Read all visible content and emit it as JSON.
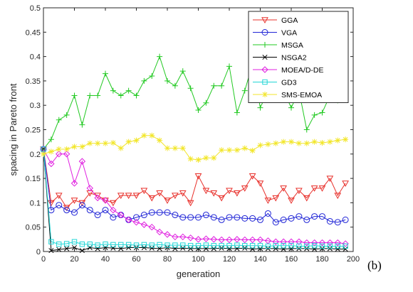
{
  "panel_label": "(b)",
  "chart_data": {
    "type": "line",
    "xlabel": "generation",
    "ylabel": "spacing in Pareto front",
    "xlim": [
      0,
      200
    ],
    "ylim": [
      0,
      0.5
    ],
    "xticks": [
      "0",
      "20",
      "40",
      "60",
      "80",
      "100",
      "120",
      "140",
      "160",
      "180",
      "200"
    ],
    "yticks": [
      "0",
      "0.05",
      "0.1",
      "0.15",
      "0.2",
      "0.25",
      "0.3",
      "0.35",
      "0.4",
      "0.45",
      "0.5"
    ],
    "legend_position": "top-right",
    "grid": false,
    "series": [
      {
        "name": "GGA",
        "color": "#e8302b",
        "marker": "triangle-down",
        "x": [
          0,
          5,
          10,
          15,
          20,
          25,
          30,
          35,
          40,
          45,
          50,
          55,
          60,
          65,
          70,
          75,
          80,
          85,
          90,
          95,
          100,
          105,
          110,
          115,
          120,
          125,
          130,
          135,
          140,
          145,
          150,
          155,
          160,
          165,
          170,
          175,
          180,
          185,
          190,
          195
        ],
        "y": [
          0.21,
          0.1,
          0.115,
          0.09,
          0.105,
          0.1,
          0.12,
          0.115,
          0.105,
          0.1,
          0.115,
          0.115,
          0.115,
          0.125,
          0.11,
          0.12,
          0.105,
          0.115,
          0.12,
          0.1,
          0.155,
          0.125,
          0.12,
          0.11,
          0.125,
          0.12,
          0.13,
          0.155,
          0.14,
          0.105,
          0.11,
          0.13,
          0.105,
          0.125,
          0.11,
          0.13,
          0.13,
          0.15,
          0.115,
          0.14
        ]
      },
      {
        "name": "VGA",
        "color": "#1f24d6",
        "marker": "circle",
        "x": [
          0,
          5,
          10,
          15,
          20,
          25,
          30,
          35,
          40,
          45,
          50,
          55,
          60,
          65,
          70,
          75,
          80,
          85,
          90,
          95,
          100,
          105,
          110,
          115,
          120,
          125,
          130,
          135,
          140,
          145,
          150,
          155,
          160,
          165,
          170,
          175,
          180,
          185,
          190,
          195
        ],
        "y": [
          0.21,
          0.085,
          0.095,
          0.085,
          0.08,
          0.095,
          0.085,
          0.075,
          0.085,
          0.07,
          0.075,
          0.065,
          0.07,
          0.075,
          0.08,
          0.08,
          0.08,
          0.075,
          0.07,
          0.07,
          0.07,
          0.075,
          0.07,
          0.065,
          0.07,
          0.07,
          0.068,
          0.068,
          0.065,
          0.078,
          0.06,
          0.065,
          0.068,
          0.072,
          0.065,
          0.072,
          0.072,
          0.062,
          0.06,
          0.065
        ]
      },
      {
        "name": "MSGA",
        "color": "#22c922",
        "marker": "plus",
        "x": [
          0,
          5,
          10,
          15,
          20,
          25,
          30,
          35,
          40,
          45,
          50,
          55,
          60,
          65,
          70,
          75,
          80,
          85,
          90,
          95,
          100,
          105,
          110,
          115,
          120,
          125,
          130,
          135,
          140,
          145,
          150,
          155,
          160,
          165,
          170,
          175,
          180,
          185,
          190,
          195
        ],
        "y": [
          0.21,
          0.23,
          0.27,
          0.28,
          0.32,
          0.26,
          0.32,
          0.32,
          0.365,
          0.33,
          0.32,
          0.33,
          0.32,
          0.35,
          0.36,
          0.4,
          0.35,
          0.34,
          0.37,
          0.335,
          0.29,
          0.305,
          0.34,
          0.34,
          0.38,
          0.285,
          0.33,
          0.385,
          0.295,
          0.33,
          0.37,
          0.33,
          0.295,
          0.33,
          0.25,
          0.28,
          0.285,
          0.32,
          0.31,
          0.38
        ]
      },
      {
        "name": "NSGA2",
        "color": "#000000",
        "marker": "x",
        "x": [
          0,
          5,
          10,
          15,
          20,
          25,
          30,
          35,
          40,
          45,
          50,
          55,
          60,
          65,
          70,
          75,
          80,
          85,
          90,
          95,
          100,
          105,
          110,
          115,
          120,
          125,
          130,
          135,
          140,
          145,
          150,
          155,
          160,
          165,
          170,
          175,
          180,
          185,
          190,
          195
        ],
        "y": [
          0.21,
          0.002,
          0.004,
          0.006,
          0.008,
          0.002,
          0.008,
          0.006,
          0.008,
          0.007,
          0.006,
          0.008,
          0.008,
          0.008,
          0.007,
          0.006,
          0.008,
          0.006,
          0.007,
          0.006,
          0.006,
          0.006,
          0.006,
          0.007,
          0.006,
          0.006,
          0.007,
          0.005,
          0.006,
          0.006,
          0.006,
          0.005,
          0.006,
          0.006,
          0.006,
          0.005,
          0.006,
          0.006,
          0.005,
          0.005
        ]
      },
      {
        "name": "MOEA/D-DE",
        "color": "#e020e0",
        "marker": "diamond",
        "x": [
          0,
          5,
          10,
          15,
          20,
          25,
          30,
          35,
          40,
          45,
          50,
          55,
          60,
          65,
          70,
          75,
          80,
          85,
          90,
          95,
          100,
          105,
          110,
          115,
          120,
          125,
          130,
          135,
          140,
          145,
          150,
          155,
          160,
          165,
          170,
          175,
          180,
          185,
          190,
          195
        ],
        "y": [
          0.21,
          0.18,
          0.2,
          0.2,
          0.14,
          0.185,
          0.13,
          0.11,
          0.105,
          0.085,
          0.075,
          0.065,
          0.06,
          0.055,
          0.05,
          0.04,
          0.035,
          0.03,
          0.03,
          0.028,
          0.025,
          0.026,
          0.025,
          0.024,
          0.024,
          0.025,
          0.024,
          0.024,
          0.024,
          0.022,
          0.02,
          0.02,
          0.02,
          0.02,
          0.018,
          0.018,
          0.018,
          0.018,
          0.018,
          0.016
        ]
      },
      {
        "name": "GD3",
        "color": "#22d6d6",
        "marker": "square",
        "x": [
          0,
          5,
          10,
          15,
          20,
          25,
          30,
          35,
          40,
          45,
          50,
          55,
          60,
          65,
          70,
          75,
          80,
          85,
          90,
          95,
          100,
          105,
          110,
          115,
          120,
          125,
          130,
          135,
          140,
          145,
          150,
          155,
          160,
          165,
          170,
          175,
          180,
          185,
          190,
          195
        ],
        "y": [
          0.21,
          0.02,
          0.015,
          0.016,
          0.02,
          0.015,
          0.015,
          0.013,
          0.015,
          0.014,
          0.014,
          0.014,
          0.013,
          0.014,
          0.013,
          0.014,
          0.013,
          0.013,
          0.013,
          0.012,
          0.012,
          0.013,
          0.012,
          0.012,
          0.012,
          0.013,
          0.012,
          0.012,
          0.012,
          0.011,
          0.012,
          0.012,
          0.012,
          0.011,
          0.011,
          0.012,
          0.011,
          0.011,
          0.011,
          0.011
        ]
      },
      {
        "name": "SMS-EMOA",
        "color": "#f2e62a",
        "marker": "star",
        "x": [
          0,
          5,
          10,
          15,
          20,
          25,
          30,
          35,
          40,
          45,
          50,
          55,
          60,
          65,
          70,
          75,
          80,
          85,
          90,
          95,
          100,
          105,
          110,
          115,
          120,
          125,
          130,
          135,
          140,
          145,
          150,
          155,
          160,
          165,
          170,
          175,
          180,
          185,
          190,
          195
        ],
        "y": [
          0.2,
          0.205,
          0.21,
          0.21,
          0.215,
          0.215,
          0.222,
          0.222,
          0.222,
          0.223,
          0.212,
          0.225,
          0.228,
          0.238,
          0.238,
          0.228,
          0.212,
          0.212,
          0.212,
          0.19,
          0.188,
          0.192,
          0.192,
          0.208,
          0.208,
          0.208,
          0.212,
          0.207,
          0.218,
          0.22,
          0.222,
          0.225,
          0.225,
          0.222,
          0.222,
          0.225,
          0.223,
          0.225,
          0.228,
          0.23
        ]
      }
    ]
  }
}
